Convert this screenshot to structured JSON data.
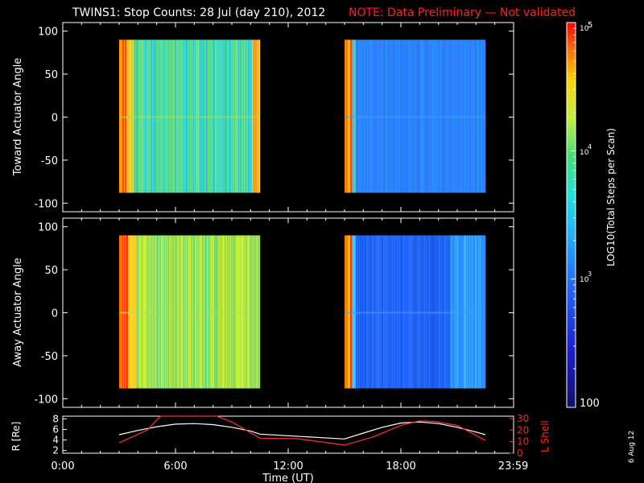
{
  "header": {
    "title": "TWINS1: Stop Counts: 28 Jul (day 210), 2012",
    "note": "NOTE: Data Preliminary — Not validated"
  },
  "side_stamp": "6 Aug 12",
  "colors": {
    "background": "#000000",
    "axis": "#ffffff",
    "note": "#ff2020",
    "r_line": "#ffffff",
    "lshell_line": "#ff3030"
  },
  "chart_data": [
    {
      "type": "heatmap",
      "panel": "toward",
      "ylabel": "Toward Actuator Angle",
      "x_range_hours": [
        0,
        24
      ],
      "ylim": [
        -110,
        110
      ],
      "y_ticks": [
        "100",
        "50",
        "0",
        "-50",
        "-100"
      ],
      "y_tick_values": [
        100,
        50,
        0,
        -50,
        -100
      ],
      "data_blocks_hours": [
        [
          3.0,
          10.5
        ],
        [
          15.0,
          22.5
        ]
      ],
      "data_angle_range": [
        -88,
        90
      ]
    },
    {
      "type": "heatmap",
      "panel": "away",
      "ylabel": "Away Actuator Angle",
      "x_range_hours": [
        0,
        24
      ],
      "ylim": [
        -110,
        110
      ],
      "y_ticks": [
        "100",
        "50",
        "0",
        "-50",
        "-100"
      ],
      "y_tick_values": [
        100,
        50,
        0,
        -50,
        -100
      ],
      "data_blocks_hours": [
        [
          3.0,
          10.5
        ],
        [
          15.0,
          22.5
        ]
      ],
      "data_angle_range": [
        -88,
        90
      ]
    },
    {
      "type": "line",
      "panel": "ephemeris",
      "xlabel": "Time (UT)",
      "ylabel_left": "R [Re]",
      "ylabel_right": "L Shell",
      "x_range_hours": [
        0,
        24
      ],
      "x_ticks": [
        "0:00",
        "6:00",
        "12:00",
        "18:00",
        "23:59"
      ],
      "x_tick_values": [
        0,
        6,
        12,
        18,
        23.98
      ],
      "y_left_ticks": [
        "8",
        "6",
        "4",
        "2"
      ],
      "y_left_tick_values": [
        8,
        6,
        4,
        2
      ],
      "ylim_left": [
        1.5,
        8.5
      ],
      "y_right_ticks": [
        "30",
        "20",
        "10",
        "0"
      ],
      "y_right_tick_values": [
        30,
        20,
        10,
        0
      ],
      "ylim_right": [
        0,
        32
      ],
      "series": [
        {
          "name": "R [Re]",
          "axis": "left",
          "x": [
            3.0,
            4.0,
            5.0,
            6.0,
            7.0,
            8.0,
            9.0,
            10.0,
            10.5,
            12.0,
            13.5,
            15.0,
            16.0,
            17.0,
            18.0,
            19.0,
            20.0,
            21.0,
            22.0,
            22.5
          ],
          "y": [
            5.0,
            5.8,
            6.5,
            7.0,
            7.1,
            6.9,
            6.4,
            5.7,
            5.1,
            4.8,
            4.5,
            4.2,
            5.3,
            6.4,
            7.2,
            7.4,
            7.1,
            6.4,
            5.5,
            5.0
          ]
        },
        {
          "name": "L Shell",
          "axis": "right",
          "x": [
            3.0,
            4.5,
            5.2,
            8.2,
            9.0,
            10.5,
            12.5,
            15.0,
            16.5,
            18.0,
            19.0,
            19.8,
            21.0,
            22.5
          ],
          "y": [
            9.0,
            20.0,
            33.0,
            33.0,
            27.0,
            13.0,
            12.5,
            7.0,
            14.0,
            24.0,
            28.0,
            27.5,
            24.0,
            11.0
          ]
        }
      ]
    },
    {
      "type": "colorbar",
      "label": "LOG10(Total Steps per Scan)",
      "scale": "log",
      "range": [
        100,
        100000
      ],
      "tick_labels": [
        "100",
        "10",
        "3",
        "10",
        "4",
        "10",
        "5"
      ],
      "tick_values": [
        100,
        1000,
        10000,
        100000
      ]
    }
  ]
}
